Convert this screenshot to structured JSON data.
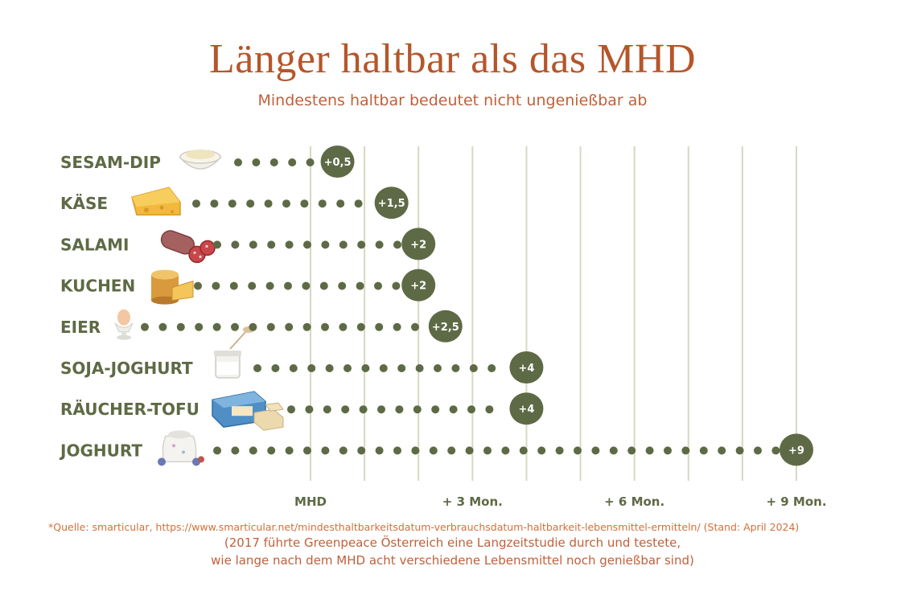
{
  "header": {
    "title": "Länger haltbar als das MHD",
    "subtitle": "Mindestens haltbar bedeutet nicht ungenießbar ab"
  },
  "footer": {
    "source": "*Quelle: smarticular, https://www.smarticular.net/mindesthaltbarkeitsdatum-verbrauchsdatum-haltbarkeit-lebensmittel-ermitteln/  (Stand: April 2024)",
    "note_line1": "(2017 führte Greenpeace Österreich eine Langzeitstudie durch und testete,",
    "note_line2": "wie lange nach dem MHD acht verschiedene Lebensmittel noch genießbar sind)"
  },
  "colors": {
    "dots": "#5e6a45",
    "badge": "#5e6a45",
    "labels": "#5e6a45",
    "grid": "#d8d8c2",
    "title": "#b5562a",
    "subtitle": "#c0603a"
  },
  "chart_data": {
    "type": "dot-bar",
    "x_unit": "months after MHD",
    "xlim": [
      0,
      9
    ],
    "x_ticks": [
      {
        "value": 0,
        "label": "MHD"
      },
      {
        "value": 3,
        "label": "+ 3 Mon."
      },
      {
        "value": 6,
        "label": "+ 6 Mon."
      },
      {
        "value": 9,
        "label": "+ 9 Mon."
      }
    ],
    "gridlines": [
      0,
      1,
      2,
      3,
      4,
      5,
      6,
      7,
      8,
      9
    ],
    "series": [
      {
        "categories": [
          "SESAM-DIP",
          "KÄSE",
          "SALAMI",
          "KUCHEN",
          "EIER",
          "SOJA-JOGHURT",
          "RÄUCHER-TOFU",
          "JOGHURT"
        ],
        "values": [
          0.5,
          1.5,
          2,
          2,
          2.5,
          4,
          4,
          9
        ],
        "value_labels": [
          "+0,5",
          "+1,5",
          "+2",
          "+2",
          "+2,5",
          "+4",
          "+4",
          "+9"
        ]
      }
    ],
    "icons": [
      "sesame-dip-bowl-icon",
      "cheese-icon",
      "salami-icon",
      "cake-icon",
      "egg-icon",
      "soy-yogurt-jar-icon",
      "smoked-tofu-icon",
      "yogurt-jar-icon"
    ]
  }
}
